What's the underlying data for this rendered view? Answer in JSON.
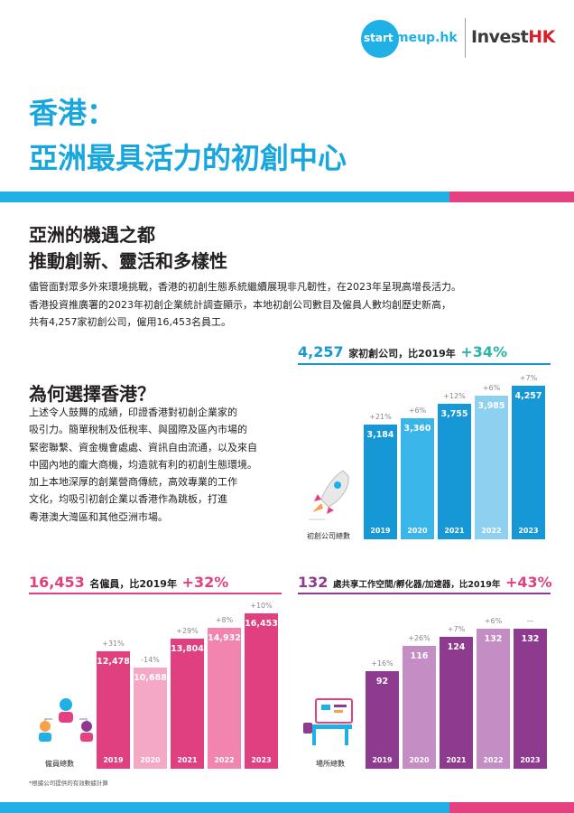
{
  "header": {
    "logo_start": "start",
    "logo_rest": "meup.hk",
    "logo_invest_a": "Invest",
    "logo_invest_b": "HK"
  },
  "title": {
    "line1": "香港：",
    "line2": "亞洲最具活力的初創中心"
  },
  "section1": {
    "heading1": "亞洲的機遇之都",
    "heading2": "推動創新、靈活和多樣性",
    "paragraph": [
      "儘管面對眾多外來環境挑戰，香港的初創生態系統繼續展現非凡韌性，在2023年呈現高增長活力。",
      "香港投資推廣署的2023年初創企業統計調查顯示，本地初創公司數目及僱員人數均創歷史新高，",
      "共有4,257家初創公司，僱用16,453名員工。"
    ]
  },
  "section2": {
    "heading": "為何選擇香港？",
    "paragraph": [
      "上述令人鼓舞的成績，印證香港對初創企業家的",
      "吸引力。簡單稅制及低稅率、與國際及區內市場的",
      "緊密聯繫、資金機會處處、資訊自由流通，以及來自",
      "中國內地的龐大商機，均造就有利的初創生態環境。",
      "加上本地深厚的創業營商傳統，高效專業的工作",
      "文化，均吸引初創企業以香港作為跳板，打進",
      "粵港澳大灣區和其他亞洲市場。"
    ]
  },
  "chart_data": [
    {
      "type": "bar",
      "title_value": "4,257",
      "title_text": "家初創公司，比2019年",
      "title_change": "+34%",
      "icon_caption": "初創公司總數",
      "categories": [
        "2019",
        "2020",
        "2021",
        "2022",
        "2023"
      ],
      "values": [
        3184,
        3360,
        3755,
        3985,
        4257
      ],
      "value_labels": [
        "3,184",
        "3,360",
        "3,755",
        "3,985",
        "4,257"
      ],
      "changes": [
        "+21%",
        "+6%",
        "+12%",
        "+6%",
        "+7%"
      ],
      "colors": [
        "#1598d5",
        "#3ab5ea",
        "#1598d5",
        "#8dd0f0",
        "#1598d5"
      ],
      "accent": "#1598d5"
    },
    {
      "type": "bar",
      "title_value": "16,453",
      "title_text": "名僱員，比2019年",
      "title_change": "+32%",
      "icon_caption": "僱員總數",
      "categories": [
        "2019",
        "2020",
        "2021",
        "2022",
        "2023"
      ],
      "values": [
        12478,
        10688,
        13804,
        14932,
        16453
      ],
      "value_labels": [
        "12,478",
        "10,688",
        "13,804",
        "14,932",
        "16,453"
      ],
      "changes": [
        "+31%",
        "-14%",
        "+29%",
        "+8%",
        "+10%"
      ],
      "colors": [
        "#e0407f",
        "#f5a7c6",
        "#e0407f",
        "#f284b0",
        "#e0407f"
      ],
      "accent": "#e0407f"
    },
    {
      "type": "bar",
      "title_value": "132",
      "title_text": "處共享工作空間/孵化器/加速器，比2019年",
      "title_change": "+43%",
      "icon_caption": "場所總數",
      "categories": [
        "2019",
        "2020",
        "2021",
        "2022",
        "2023"
      ],
      "values": [
        92,
        116,
        124,
        132,
        132
      ],
      "value_labels": [
        "92",
        "116",
        "124",
        "132",
        "132"
      ],
      "changes": [
        "+16%",
        "+26%",
        "+7%",
        "+6%",
        "—"
      ],
      "colors": [
        "#8e3a8e",
        "#c48dc4",
        "#8e3a8e",
        "#c48dc4",
        "#8e3a8e"
      ],
      "accent": "#8e3a8e"
    }
  ],
  "footnote": "*根據公司提供的有效數據計算"
}
